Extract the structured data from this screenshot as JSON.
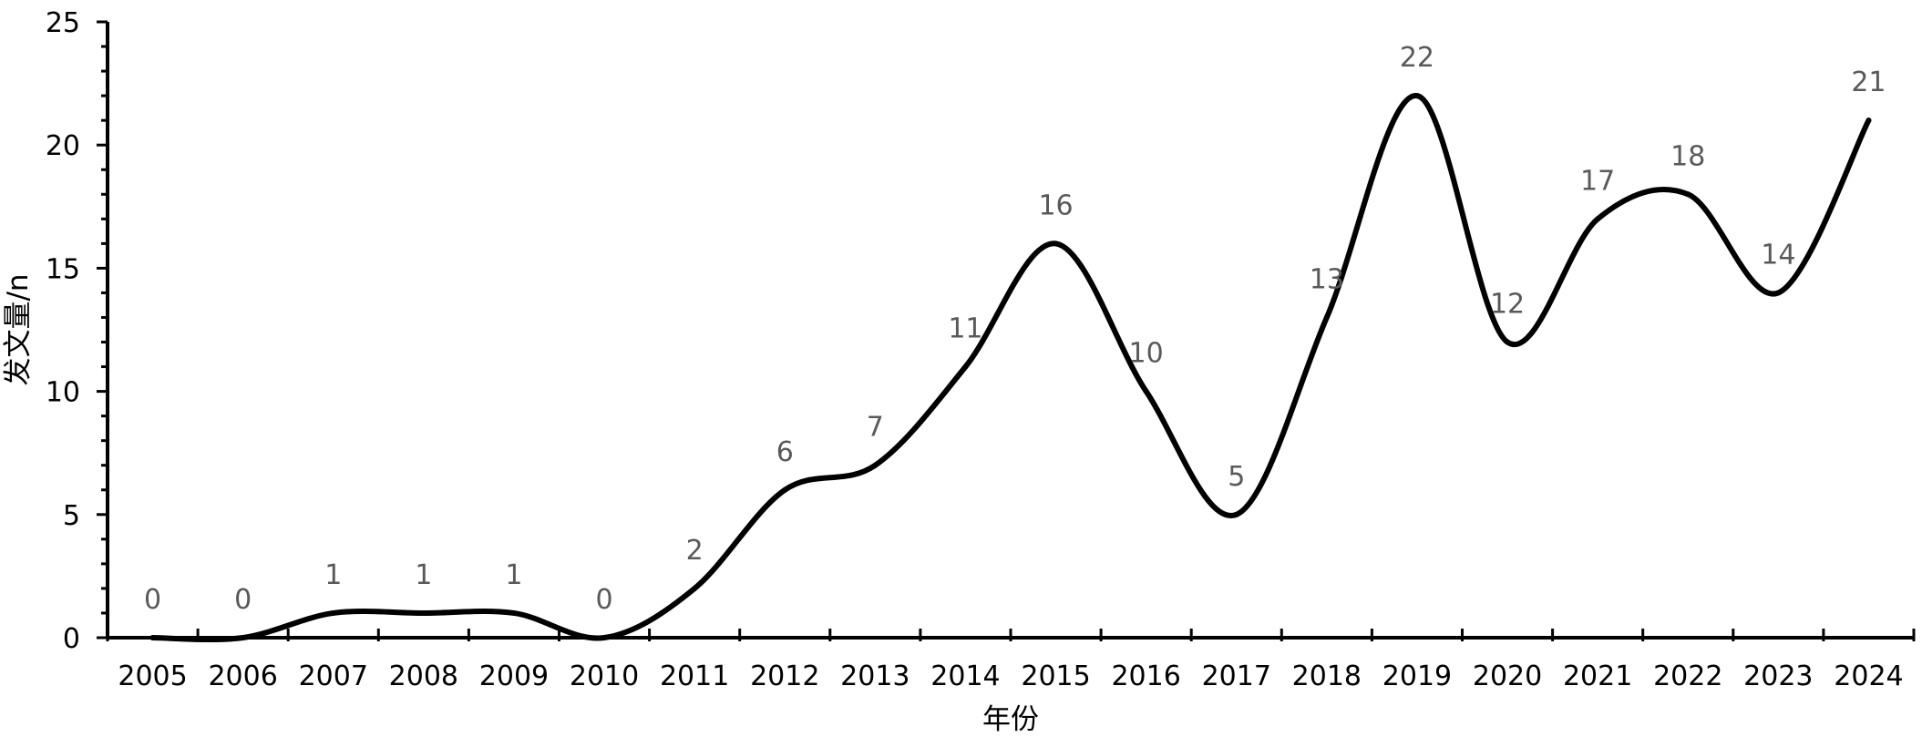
{
  "chart_data": {
    "type": "line",
    "smooth": true,
    "categories": [
      "2005",
      "2006",
      "2007",
      "2008",
      "2009",
      "2010",
      "2011",
      "2012",
      "2013",
      "2014",
      "2015",
      "2016",
      "2017",
      "2018",
      "2019",
      "2020",
      "2021",
      "2022",
      "2023",
      "2024"
    ],
    "series": [
      {
        "values": [
          0,
          0,
          1,
          1,
          1,
          0,
          2,
          6,
          7,
          11,
          16,
          10,
          5,
          13,
          22,
          12,
          17,
          18,
          14,
          21
        ]
      }
    ],
    "xlabel": "年份",
    "ylabel": "发文量/n",
    "ylim": [
      0,
      25
    ],
    "yticks": [
      0,
      5,
      10,
      15,
      20,
      25
    ],
    "grid": false,
    "legend": "none",
    "line_color": "#000000",
    "label_color": "#595959"
  }
}
